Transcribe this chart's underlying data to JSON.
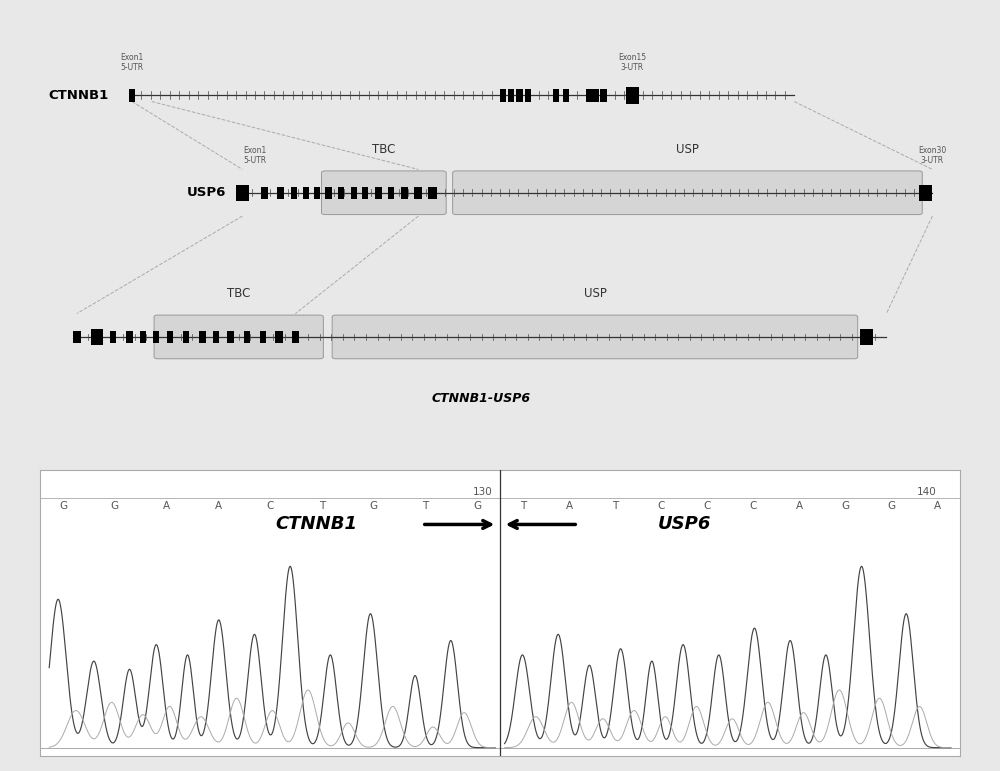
{
  "bg_color": "#e8e8e8",
  "panel_bg": "#ffffff",
  "title_fusion": "CTNNB1-USP6",
  "ctnnb1_label": "CTNNB1",
  "usp6_label": "USP6",
  "seq_left": [
    "G",
    "G",
    "A",
    "A",
    "C",
    "T",
    "G",
    "T",
    "G"
  ],
  "seq_right": [
    "T",
    "A",
    "T",
    "C",
    "C",
    "C",
    "A",
    "G",
    "G",
    "A"
  ],
  "num_left": "130",
  "num_right": "140"
}
